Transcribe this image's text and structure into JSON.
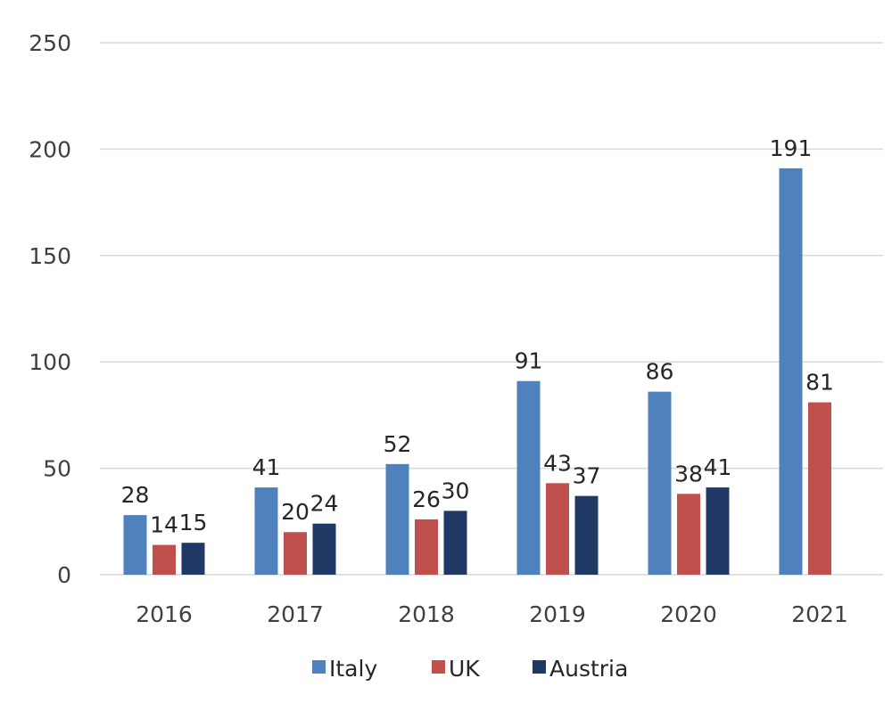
{
  "chart_data": {
    "type": "bar",
    "categories": [
      "2016",
      "2017",
      "2018",
      "2019",
      "2020",
      "2021"
    ],
    "series": [
      {
        "name": "Italy",
        "values": [
          28,
          41,
          52,
          91,
          86,
          191
        ],
        "color": "#4F81BD"
      },
      {
        "name": "UK",
        "values": [
          14,
          20,
          26,
          43,
          38,
          81
        ],
        "color": "#C0504D"
      },
      {
        "name": "Austria",
        "values": [
          15,
          24,
          30,
          37,
          41,
          null
        ],
        "color": "#1F3864"
      }
    ],
    "ylim": [
      0,
      250
    ],
    "yticks": [
      "0",
      "50",
      "100",
      "150",
      "200",
      "250"
    ],
    "grid": true,
    "legend": "bottom"
  }
}
